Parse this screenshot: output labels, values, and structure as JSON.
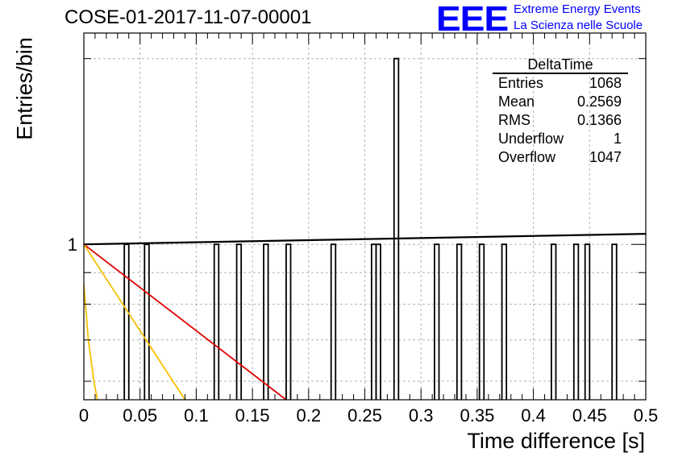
{
  "header": {
    "run_title": "COSE-01-2017-11-07-00001",
    "logo_text": "EEE",
    "logo_line1": "Extreme Energy Events",
    "logo_line2": "La Scienza nelle Scuole"
  },
  "stats_box": {
    "title": "DeltaTime",
    "rows": [
      {
        "label": "Entries",
        "value": "1068"
      },
      {
        "label": "Mean",
        "value": "0.2569"
      },
      {
        "label": "RMS",
        "value": "0.1366"
      },
      {
        "label": "Underflow",
        "value": "1"
      },
      {
        "label": "Overflow",
        "value": "1047"
      }
    ]
  },
  "colors": {
    "histogram": "#000000",
    "fit_line": "#000000",
    "red_curve": "#e00000",
    "orange_curves": "#f5c000",
    "grid": "#b4b4b4"
  },
  "chart_data": {
    "type": "bar",
    "title": "COSE-01-2017-11-07-00001",
    "xlabel": "Time difference [s]",
    "ylabel": "Entries/bin",
    "xlim": [
      0,
      0.5
    ],
    "ylim": [
      0.56,
      2.2
    ],
    "y_scale": "log",
    "grid": true,
    "x_ticks": [
      "0",
      "0.05",
      "0.1",
      "0.15",
      "0.2",
      "0.25",
      "0.3",
      "0.35",
      "0.4",
      "0.45",
      "0.5"
    ],
    "y_ticks": [
      "1"
    ],
    "bin_width": 0.004,
    "bins": [
      {
        "x": 0.036,
        "y": 1
      },
      {
        "x": 0.054,
        "y": 1
      },
      {
        "x": 0.116,
        "y": 1
      },
      {
        "x": 0.136,
        "y": 1
      },
      {
        "x": 0.16,
        "y": 1
      },
      {
        "x": 0.18,
        "y": 1
      },
      {
        "x": 0.22,
        "y": 1
      },
      {
        "x": 0.256,
        "y": 1
      },
      {
        "x": 0.26,
        "y": 1
      },
      {
        "x": 0.276,
        "y": 2
      },
      {
        "x": 0.312,
        "y": 1
      },
      {
        "x": 0.332,
        "y": 1
      },
      {
        "x": 0.352,
        "y": 1
      },
      {
        "x": 0.372,
        "y": 1
      },
      {
        "x": 0.416,
        "y": 1
      },
      {
        "x": 0.436,
        "y": 1
      },
      {
        "x": 0.446,
        "y": 1
      },
      {
        "x": 0.47,
        "y": 1
      }
    ],
    "fit_line": {
      "y_start": 1.0,
      "y_end": 1.04
    },
    "curves": [
      {
        "color": "red",
        "x": [
          0,
          0.18
        ],
        "y": [
          1.0,
          0.56
        ]
      },
      {
        "color": "orange",
        "x": [
          0,
          0.09
        ],
        "y": [
          1.0,
          0.56
        ]
      },
      {
        "color": "orange",
        "x": [
          0,
          0.004,
          0.009,
          0.012
        ],
        "y": [
          0.86,
          0.7,
          0.6,
          0.56
        ]
      }
    ]
  }
}
